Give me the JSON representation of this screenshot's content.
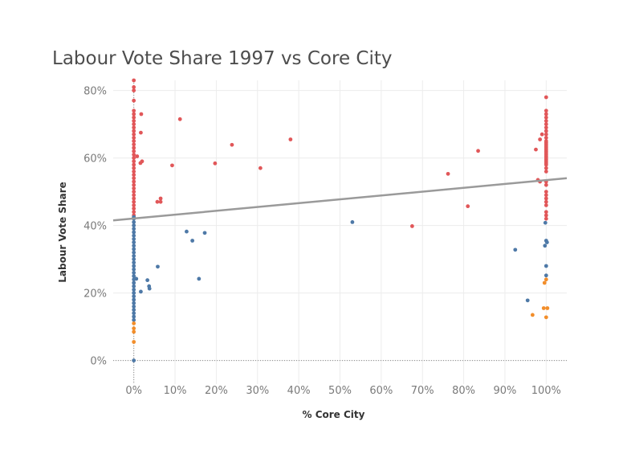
{
  "chart_data": {
    "type": "scatter",
    "title": "Labour Vote Share 1997 vs Core City",
    "xlabel": "% Core City",
    "ylabel": "Labour Vote Share",
    "xlim": [
      -0.05,
      1.05
    ],
    "ylim": [
      -0.07,
      0.83
    ],
    "x_ticks": [
      0,
      0.1,
      0.2,
      0.3,
      0.4,
      0.5,
      0.6,
      0.7,
      0.8,
      0.9,
      1.0
    ],
    "x_tick_labels": [
      "0%",
      "10%",
      "20%",
      "30%",
      "40%",
      "50%",
      "60%",
      "70%",
      "80%",
      "90%",
      "100%"
    ],
    "y_ticks": [
      0,
      0.2,
      0.4,
      0.6,
      0.8
    ],
    "y_tick_labels": [
      "0%",
      "20%",
      "40%",
      "60%",
      "80%"
    ],
    "grid": true,
    "legend": "none",
    "trend_line": {
      "x": [
        -0.05,
        1.05
      ],
      "y": [
        0.415,
        0.54
      ],
      "color": "#9a9a9a"
    },
    "colors": {
      "red": "#e15759",
      "blue": "#4e79a7",
      "orange": "#f28e2b"
    },
    "series": [
      {
        "color": "red",
        "points": [
          [
            0,
            0.83
          ],
          [
            0,
            0.81
          ],
          [
            0,
            0.8
          ],
          [
            0,
            0.77
          ],
          [
            0,
            0.74
          ],
          [
            0,
            0.73
          ],
          [
            0,
            0.72
          ],
          [
            0,
            0.71
          ],
          [
            0,
            0.7
          ],
          [
            0,
            0.69
          ],
          [
            0,
            0.68
          ],
          [
            0,
            0.67
          ],
          [
            0,
            0.66
          ],
          [
            0,
            0.65
          ],
          [
            0,
            0.64
          ],
          [
            0,
            0.63
          ],
          [
            0,
            0.62
          ],
          [
            0,
            0.61
          ],
          [
            0,
            0.6
          ],
          [
            0,
            0.59
          ],
          [
            0,
            0.58
          ],
          [
            0,
            0.57
          ],
          [
            0,
            0.56
          ],
          [
            0,
            0.55
          ],
          [
            0,
            0.54
          ],
          [
            0,
            0.53
          ],
          [
            0,
            0.52
          ],
          [
            0,
            0.51
          ],
          [
            0,
            0.5
          ],
          [
            0,
            0.49
          ],
          [
            0,
            0.48
          ],
          [
            0,
            0.47
          ],
          [
            0,
            0.46
          ],
          [
            0,
            0.45
          ],
          [
            0,
            0.44
          ],
          [
            0,
            0.43
          ],
          [
            0.018,
            0.73
          ],
          [
            0.017,
            0.675
          ],
          [
            0.008,
            0.605
          ],
          [
            0.02,
            0.59
          ],
          [
            0.016,
            0.585
          ],
          [
            0.093,
            0.578
          ],
          [
            0.112,
            0.715
          ],
          [
            0.057,
            0.47
          ],
          [
            0.065,
            0.48
          ],
          [
            0.065,
            0.47
          ],
          [
            0.197,
            0.584
          ],
          [
            0.238,
            0.639
          ],
          [
            0.307,
            0.57
          ],
          [
            0.38,
            0.655
          ],
          [
            0.675,
            0.398
          ],
          [
            0.762,
            0.553
          ],
          [
            0.81,
            0.457
          ],
          [
            0.835,
            0.621
          ],
          [
            0.975,
            0.625
          ],
          [
            0.99,
            0.67
          ],
          [
            0.985,
            0.655
          ],
          [
            0.98,
            0.535
          ],
          [
            0.985,
            0.53
          ],
          [
            1.0,
            0.78
          ],
          [
            1.0,
            0.74
          ],
          [
            1.0,
            0.73
          ],
          [
            1.0,
            0.72
          ],
          [
            1.0,
            0.71
          ],
          [
            1.0,
            0.7
          ],
          [
            1.0,
            0.69
          ],
          [
            1.0,
            0.68
          ],
          [
            1.0,
            0.67
          ],
          [
            1.0,
            0.66
          ],
          [
            1.0,
            0.65
          ],
          [
            1.0,
            0.645
          ],
          [
            1.0,
            0.64
          ],
          [
            1.0,
            0.635
          ],
          [
            1.0,
            0.63
          ],
          [
            1.0,
            0.625
          ],
          [
            1.0,
            0.62
          ],
          [
            1.0,
            0.615
          ],
          [
            1.0,
            0.61
          ],
          [
            1.0,
            0.605
          ],
          [
            1.0,
            0.6
          ],
          [
            1.0,
            0.595
          ],
          [
            1.0,
            0.59
          ],
          [
            1.0,
            0.585
          ],
          [
            1.0,
            0.58
          ],
          [
            1.0,
            0.57
          ],
          [
            1.0,
            0.56
          ],
          [
            1.0,
            0.53
          ],
          [
            1.0,
            0.52
          ],
          [
            1.0,
            0.5
          ],
          [
            1.0,
            0.49
          ],
          [
            1.0,
            0.48
          ],
          [
            1.0,
            0.47
          ],
          [
            1.0,
            0.46
          ],
          [
            1.0,
            0.44
          ],
          [
            1.0,
            0.43
          ],
          [
            1.0,
            0.42
          ]
        ]
      },
      {
        "color": "blue",
        "points": [
          [
            0,
            0.425
          ],
          [
            0,
            0.42
          ],
          [
            0,
            0.41
          ],
          [
            0,
            0.4
          ],
          [
            0,
            0.39
          ],
          [
            0,
            0.38
          ],
          [
            0,
            0.37
          ],
          [
            0,
            0.36
          ],
          [
            0,
            0.35
          ],
          [
            0,
            0.34
          ],
          [
            0,
            0.33
          ],
          [
            0,
            0.32
          ],
          [
            0,
            0.31
          ],
          [
            0,
            0.3
          ],
          [
            0,
            0.29
          ],
          [
            0,
            0.28
          ],
          [
            0,
            0.27
          ],
          [
            0,
            0.26
          ],
          [
            0,
            0.25
          ],
          [
            0,
            0.24
          ],
          [
            0,
            0.23
          ],
          [
            0,
            0.22
          ],
          [
            0,
            0.21
          ],
          [
            0,
            0.2
          ],
          [
            0,
            0.19
          ],
          [
            0,
            0.18
          ],
          [
            0,
            0.17
          ],
          [
            0,
            0.16
          ],
          [
            0,
            0.15
          ],
          [
            0,
            0.14
          ],
          [
            0,
            0.13
          ],
          [
            0,
            0.12
          ],
          [
            0,
            0.0
          ],
          [
            0.006,
            0.242
          ],
          [
            0.017,
            0.204
          ],
          [
            0.033,
            0.238
          ],
          [
            0.037,
            0.22
          ],
          [
            0.038,
            0.213
          ],
          [
            0.058,
            0.278
          ],
          [
            0.128,
            0.382
          ],
          [
            0.142,
            0.355
          ],
          [
            0.158,
            0.242
          ],
          [
            0.172,
            0.378
          ],
          [
            0.53,
            0.41
          ],
          [
            0.925,
            0.328
          ],
          [
            0.955,
            0.178
          ],
          [
            0.998,
            0.408
          ],
          [
            1.0,
            0.355
          ],
          [
            1.002,
            0.35
          ],
          [
            0.997,
            0.34
          ],
          [
            1.0,
            0.28
          ],
          [
            1.0,
            0.252
          ]
        ]
      },
      {
        "color": "orange",
        "points": [
          [
            0,
            0.11
          ],
          [
            0,
            0.095
          ],
          [
            0,
            0.085
          ],
          [
            0,
            0.055
          ],
          [
            0.967,
            0.135
          ],
          [
            0.994,
            0.155
          ],
          [
            1.003,
            0.155
          ],
          [
            0.996,
            0.23
          ],
          [
            1.0,
            0.24
          ],
          [
            1.0,
            0.128
          ]
        ]
      }
    ]
  }
}
